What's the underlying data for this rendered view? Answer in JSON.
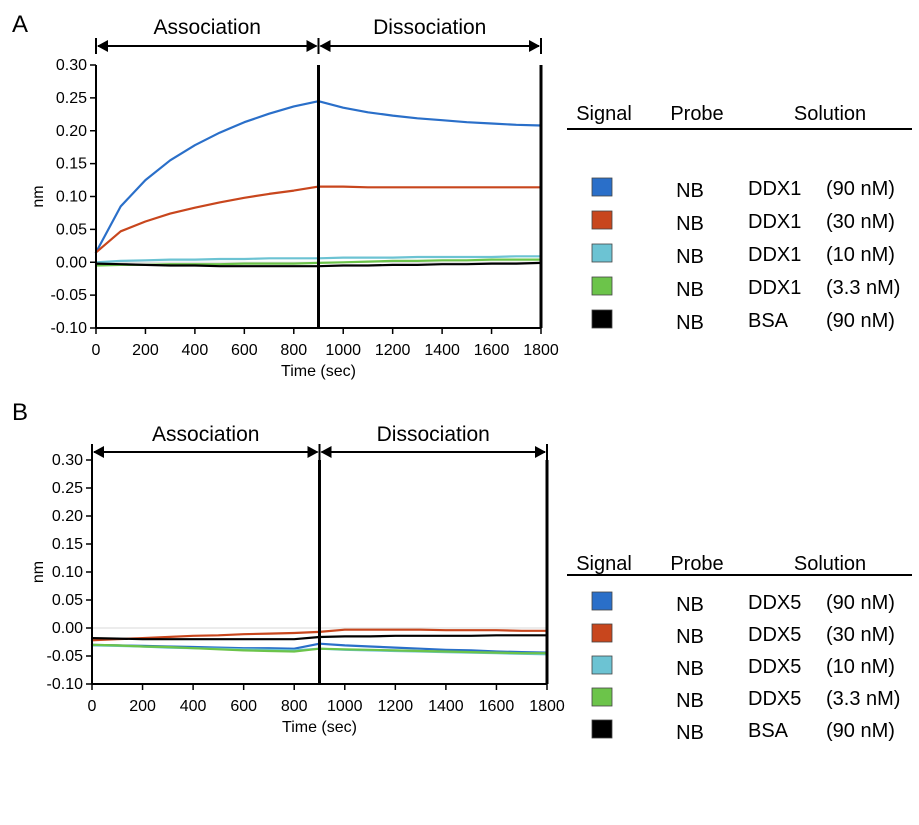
{
  "panels": [
    {
      "letter": "A",
      "phases": [
        "Association",
        "Dissociation"
      ],
      "legend": {
        "headers": [
          "Signal",
          "Probe",
          "Solution"
        ],
        "rows": [
          {
            "color": "#2a6fc9",
            "probe": "NB",
            "analyte": "DDX1",
            "conc": "(90 nM)"
          },
          {
            "color": "#c8461d",
            "probe": "NB",
            "analyte": "DDX1",
            "conc": "(30 nM)"
          },
          {
            "color": "#6cc3d3",
            "probe": "NB",
            "analyte": "DDX1",
            "conc": "(10 nM)"
          },
          {
            "color": "#6cc44a",
            "probe": "NB",
            "analyte": "DDX1",
            "conc": "(3.3 nM)"
          },
          {
            "color": "#000000",
            "probe": "NB",
            "analyte": "BSA",
            "conc": "(90 nM)"
          }
        ]
      }
    },
    {
      "letter": "B",
      "phases": [
        "Association",
        "Dissociation"
      ],
      "legend": {
        "headers": [
          "Signal",
          "Probe",
          "Solution"
        ],
        "rows": [
          {
            "color": "#2a6fc9",
            "probe": "NB",
            "analyte": "DDX5",
            "conc": "(90 nM)"
          },
          {
            "color": "#c8461d",
            "probe": "NB",
            "analyte": "DDX5",
            "conc": "(30 nM)"
          },
          {
            "color": "#6cc3d3",
            "probe": "NB",
            "analyte": "DDX5",
            "conc": "(10 nM)"
          },
          {
            "color": "#6cc44a",
            "probe": "NB",
            "analyte": "DDX5",
            "conc": "(3.3 nM)"
          },
          {
            "color": "#000000",
            "probe": "NB",
            "analyte": "BSA",
            "conc": "(90 nM)"
          }
        ]
      }
    }
  ],
  "chart_data": [
    {
      "type": "line",
      "xlabel": "Time (sec)",
      "ylabel": "nm",
      "xlim": [
        0,
        1800
      ],
      "ylim": [
        -0.1,
        0.3
      ],
      "xticks": [
        0,
        200,
        400,
        600,
        800,
        1000,
        1200,
        1400,
        1600,
        1800
      ],
      "yticks": [
        "-0.10",
        "-0.05",
        "0.00",
        "0.05",
        "0.10",
        "0.15",
        "0.20",
        "0.25",
        "0.30"
      ],
      "phase_boundary": 900,
      "x": [
        0,
        100,
        200,
        300,
        400,
        500,
        600,
        700,
        800,
        900,
        1000,
        1100,
        1200,
        1300,
        1400,
        1500,
        1600,
        1700,
        1800
      ],
      "series": [
        {
          "name": "DDX1 (90 nM)",
          "color": "#2a6fc9",
          "values": [
            0.015,
            0.085,
            0.125,
            0.155,
            0.178,
            0.197,
            0.213,
            0.226,
            0.237,
            0.245,
            0.235,
            0.228,
            0.223,
            0.219,
            0.216,
            0.213,
            0.211,
            0.209,
            0.208
          ]
        },
        {
          "name": "DDX1 (30 nM)",
          "color": "#c8461d",
          "values": [
            0.015,
            0.047,
            0.062,
            0.074,
            0.083,
            0.091,
            0.098,
            0.104,
            0.109,
            0.115,
            0.115,
            0.114,
            0.114,
            0.114,
            0.114,
            0.114,
            0.114,
            0.114,
            0.114
          ]
        },
        {
          "name": "DDX1 (10 nM)",
          "color": "#6cc3d3",
          "values": [
            0.0,
            0.002,
            0.003,
            0.004,
            0.004,
            0.005,
            0.005,
            0.006,
            0.006,
            0.006,
            0.007,
            0.007,
            0.007,
            0.008,
            0.008,
            0.008,
            0.008,
            0.009,
            0.009
          ]
        },
        {
          "name": "DDX1 (3.3 nM)",
          "color": "#6cc44a",
          "values": [
            -0.005,
            -0.004,
            -0.004,
            -0.003,
            -0.003,
            -0.003,
            -0.002,
            -0.002,
            -0.002,
            -0.001,
            0.0,
            0.001,
            0.002,
            0.002,
            0.003,
            0.003,
            0.004,
            0.004,
            0.004
          ]
        },
        {
          "name": "BSA (90 nM)",
          "color": "#000000",
          "values": [
            -0.002,
            -0.003,
            -0.004,
            -0.005,
            -0.005,
            -0.006,
            -0.006,
            -0.006,
            -0.006,
            -0.006,
            -0.005,
            -0.005,
            -0.004,
            -0.004,
            -0.003,
            -0.003,
            -0.002,
            -0.002,
            -0.001
          ]
        }
      ]
    },
    {
      "type": "line",
      "xlabel": "Time (sec)",
      "ylabel": "nm",
      "xlim": [
        0,
        1800
      ],
      "ylim": [
        -0.1,
        0.3
      ],
      "xticks": [
        0,
        200,
        400,
        600,
        800,
        1000,
        1200,
        1400,
        1600,
        1800
      ],
      "yticks": [
        "-0.10",
        "-0.05",
        "0.00",
        "0.05",
        "0.10",
        "0.15",
        "0.20",
        "0.25",
        "0.30"
      ],
      "phase_boundary": 900,
      "x": [
        0,
        100,
        200,
        300,
        400,
        500,
        600,
        700,
        800,
        900,
        1000,
        1100,
        1200,
        1300,
        1400,
        1500,
        1600,
        1700,
        1800
      ],
      "series": [
        {
          "name": "DDX5 (90 nM)",
          "color": "#2a6fc9",
          "values": [
            -0.03,
            -0.031,
            -0.032,
            -0.033,
            -0.034,
            -0.035,
            -0.036,
            -0.036,
            -0.037,
            -0.028,
            -0.031,
            -0.033,
            -0.035,
            -0.037,
            -0.039,
            -0.04,
            -0.042,
            -0.043,
            -0.044
          ]
        },
        {
          "name": "DDX5 (30 nM)",
          "color": "#c8461d",
          "values": [
            -0.022,
            -0.02,
            -0.018,
            -0.016,
            -0.014,
            -0.013,
            -0.011,
            -0.01,
            -0.009,
            -0.007,
            -0.003,
            -0.003,
            -0.003,
            -0.003,
            -0.004,
            -0.004,
            -0.004,
            -0.005,
            -0.005
          ]
        },
        {
          "name": "DDX5 (10 nM)",
          "color": "#6cc3d3",
          "values": [
            -0.031,
            -0.032,
            -0.033,
            -0.035,
            -0.036,
            -0.037,
            -0.038,
            -0.039,
            -0.04,
            -0.037,
            -0.039,
            -0.04,
            -0.041,
            -0.042,
            -0.043,
            -0.044,
            -0.045,
            -0.046,
            -0.047
          ]
        },
        {
          "name": "DDX5 (3.3 nM)",
          "color": "#6cc44a",
          "values": [
            -0.03,
            -0.031,
            -0.033,
            -0.034,
            -0.036,
            -0.038,
            -0.04,
            -0.041,
            -0.042,
            -0.037,
            -0.038,
            -0.039,
            -0.04,
            -0.041,
            -0.042,
            -0.043,
            -0.044,
            -0.045,
            -0.045
          ]
        },
        {
          "name": "BSA (90 nM)",
          "color": "#000000",
          "values": [
            -0.018,
            -0.019,
            -0.02,
            -0.02,
            -0.02,
            -0.02,
            -0.02,
            -0.02,
            -0.02,
            -0.016,
            -0.015,
            -0.015,
            -0.014,
            -0.014,
            -0.014,
            -0.014,
            -0.013,
            -0.013,
            -0.013
          ]
        }
      ]
    }
  ]
}
